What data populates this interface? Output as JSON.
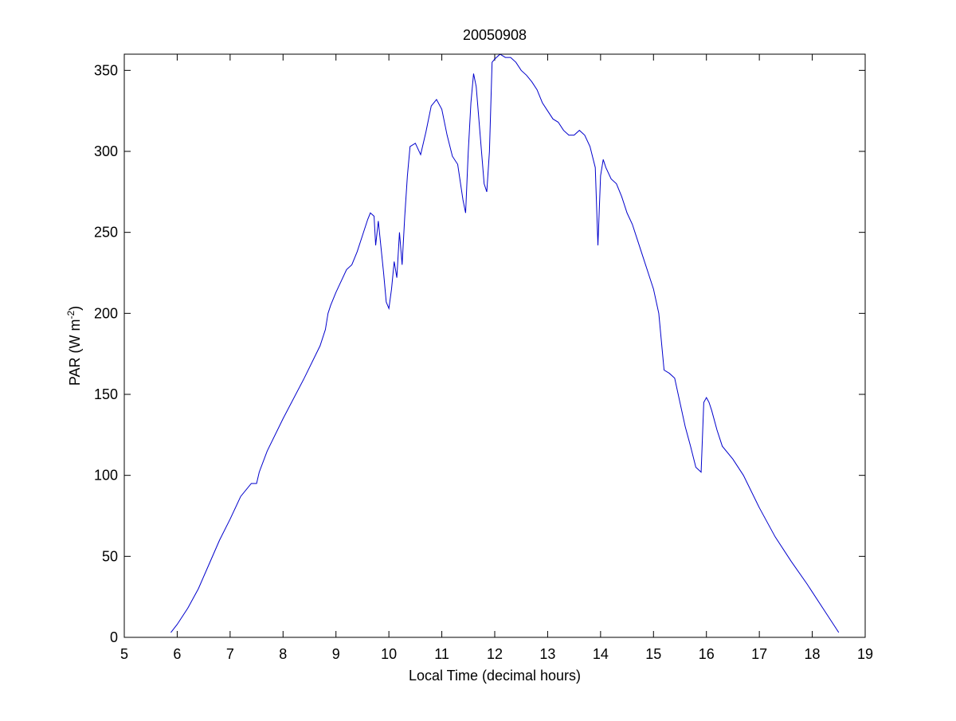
{
  "chart_data": {
    "type": "line",
    "title": "20050908",
    "xlabel": "Local Time (decimal hours)",
    "ylabel": "PAR (W m",
    "ylabel_superscript": "-2",
    "ylabel_suffix": ")",
    "xlim": [
      5,
      19
    ],
    "ylim": [
      0,
      360
    ],
    "xticks": [
      5,
      6,
      7,
      8,
      9,
      10,
      11,
      12,
      13,
      14,
      15,
      16,
      17,
      18,
      19
    ],
    "yticks": [
      0,
      50,
      100,
      150,
      200,
      250,
      300,
      350
    ],
    "grid": false,
    "line_color": "#0000cc",
    "series": [
      {
        "x": [
          5.88,
          6.0,
          6.2,
          6.4,
          6.6,
          6.8,
          7.0,
          7.2,
          7.4,
          7.5,
          7.55,
          7.7,
          8.0,
          8.4,
          8.7,
          8.8,
          8.85,
          8.9,
          9.0,
          9.1,
          9.2,
          9.3,
          9.4,
          9.5,
          9.6,
          9.65,
          9.72,
          9.75,
          9.8,
          9.9,
          9.95,
          10.0,
          10.05,
          10.1,
          10.15,
          10.2,
          10.25,
          10.3,
          10.35,
          10.4,
          10.5,
          10.6,
          10.7,
          10.8,
          10.9,
          11.0,
          11.1,
          11.2,
          11.3,
          11.4,
          11.45,
          11.5,
          11.55,
          11.6,
          11.65,
          11.7,
          11.75,
          11.8,
          11.85,
          11.9,
          11.95,
          12.0,
          12.1,
          12.2,
          12.3,
          12.4,
          12.5,
          12.6,
          12.7,
          12.8,
          12.9,
          13.0,
          13.1,
          13.2,
          13.3,
          13.4,
          13.5,
          13.6,
          13.7,
          13.8,
          13.9,
          13.95,
          14.0,
          14.05,
          14.1,
          14.2,
          14.3,
          14.4,
          14.5,
          14.6,
          14.7,
          14.8,
          14.9,
          15.0,
          15.1,
          15.2,
          15.3,
          15.4,
          15.5,
          15.6,
          15.7,
          15.8,
          15.9,
          15.95,
          16.0,
          16.05,
          16.1,
          16.2,
          16.3,
          16.5,
          16.7,
          17.0,
          17.3,
          17.6,
          17.9,
          18.2,
          18.5
        ],
        "y": [
          3,
          8,
          18,
          30,
          45,
          60,
          73,
          87,
          95,
          95,
          102,
          115,
          135,
          160,
          180,
          190,
          200,
          205,
          213,
          220,
          227,
          230,
          238,
          248,
          258,
          262,
          260,
          242,
          257,
          225,
          207,
          203,
          215,
          232,
          222,
          250,
          230,
          260,
          285,
          303,
          305,
          298,
          312,
          328,
          332,
          326,
          310,
          297,
          292,
          270,
          262,
          300,
          330,
          348,
          340,
          320,
          300,
          280,
          275,
          300,
          355,
          357,
          360,
          358,
          358,
          355,
          350,
          347,
          343,
          338,
          330,
          325,
          320,
          318,
          313,
          310,
          310,
          313,
          310,
          303,
          290,
          242,
          285,
          295,
          290,
          283,
          280,
          272,
          262,
          255,
          245,
          235,
          225,
          215,
          200,
          165,
          163,
          160,
          145,
          130,
          118,
          105,
          102,
          145,
          148,
          145,
          140,
          128,
          118,
          110,
          100,
          80,
          62,
          47,
          33,
          18,
          3
        ]
      }
    ]
  }
}
